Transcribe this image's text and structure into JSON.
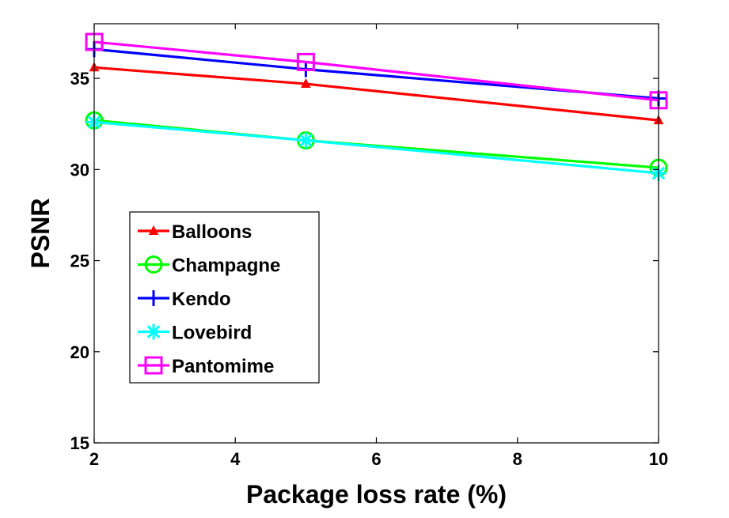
{
  "chart_data": {
    "type": "line",
    "title": "",
    "xlabel": "Package loss rate (%)",
    "ylabel": "PSNR",
    "x": [
      2,
      5,
      10
    ],
    "xlim": [
      2,
      10
    ],
    "ylim": [
      15,
      38
    ],
    "xticks": [
      2,
      4,
      6,
      8,
      10
    ],
    "yticks": [
      15,
      20,
      25,
      30,
      35
    ],
    "grid": false,
    "legend_position": "lower-left",
    "series": [
      {
        "name": "Balloons",
        "values": [
          35.6,
          34.7,
          32.7
        ],
        "color": "#ff0000",
        "marker": "triangle"
      },
      {
        "name": "Champagne",
        "values": [
          32.7,
          31.6,
          30.1
        ],
        "color": "#00ff00",
        "marker": "circle"
      },
      {
        "name": "Kendo",
        "values": [
          36.6,
          35.5,
          33.9
        ],
        "color": "#0000ff",
        "marker": "plus"
      },
      {
        "name": "Lovebird",
        "values": [
          32.6,
          31.6,
          29.8
        ],
        "color": "#00ffff",
        "marker": "asterisk"
      },
      {
        "name": "Pantomime",
        "values": [
          37.0,
          35.9,
          33.8
        ],
        "color": "#ff00ff",
        "marker": "square"
      }
    ]
  }
}
